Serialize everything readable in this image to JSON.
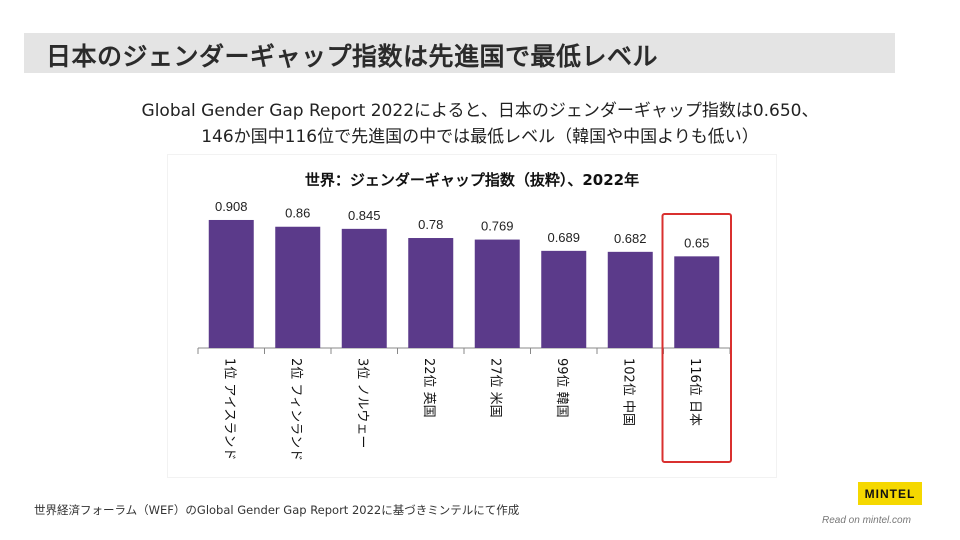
{
  "title": "日本のジェンダーギャップ指数は先進国で最低レベル",
  "subtitle_line1": "Global Gender Gap Report 2022によると、日本のジェンダーギャップ指数は0.650、",
  "subtitle_line2": "146か国中116位で先進国の中では最低レベル（韓国や中国よりも低い）",
  "source": "世界経済フォーラム（WEF）のGlobal Gender Gap Report 2022に基づきミンテルにて作成",
  "logo": "MINTEL",
  "read_on": "Read on mintel.com",
  "colors": {
    "bar": "#5b3a8a",
    "highlight": "#d9302f",
    "title_bg": "#e4e4e4",
    "logo_bg": "#f5d800"
  },
  "chart_data": {
    "type": "bar",
    "title": "世界：ジェンダーギャップ指数（抜粋）、2022年",
    "categories": [
      "1位 アイスランド",
      "2位 フィンランド",
      "3位 ノルウェー",
      "22位 英国",
      "27位 米国",
      "99位 韓国",
      "102位 中国",
      "116位 日本"
    ],
    "values": [
      0.908,
      0.86,
      0.845,
      0.78,
      0.769,
      0.689,
      0.682,
      0.65
    ],
    "value_labels": [
      "0.908",
      "0.86",
      "0.845",
      "0.78",
      "0.769",
      "0.689",
      "0.682",
      "0.65"
    ],
    "ylim": [
      0,
      1
    ],
    "highlight_index": 7,
    "xlabel": "",
    "ylabel": ""
  }
}
